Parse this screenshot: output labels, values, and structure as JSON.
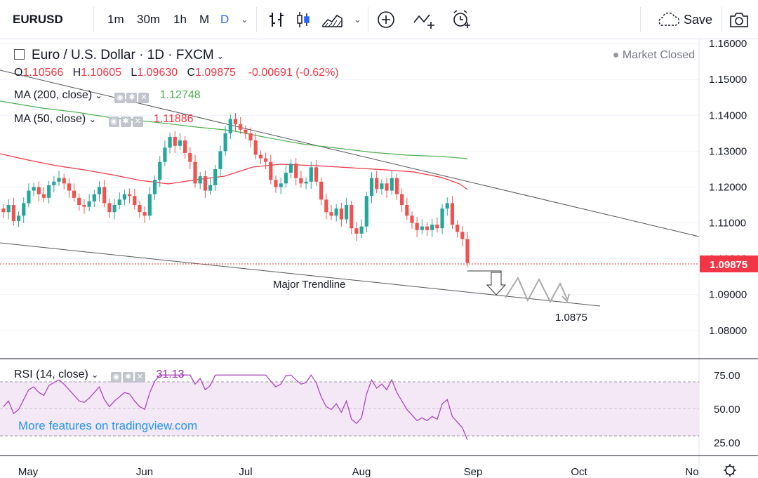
{
  "toolbar": {
    "symbol": "EURUSD",
    "timeframes": [
      "1m",
      "30m",
      "1h",
      "M",
      "D"
    ],
    "active_timeframe": "D",
    "save_label": "Save"
  },
  "legend": {
    "title": "Euro / U.S. Dollar · 1D · FXCM",
    "ohlc": {
      "o_label": "O",
      "o": "1.10566",
      "h_label": "H",
      "h": "1.10605",
      "l_label": "L",
      "l": "1.09630",
      "c_label": "C",
      "c": "1.09875",
      "change": "-0.00691 (-0.62%)"
    },
    "ma200": {
      "label": "MA (200, close)",
      "value": "1.12748",
      "color": "#4caf50"
    },
    "ma50": {
      "label": "MA (50, close)",
      "value": "1.11886",
      "color": "#f23645"
    },
    "rsi": {
      "label": "RSI (14, close)",
      "value": "31.13",
      "color": "#9c27b0"
    },
    "market_status": "Market Closed"
  },
  "watermark": "More features on tradingview.com",
  "chart_data": {
    "type": "candlestick",
    "symbol": "EURUSD",
    "x_ticks": [
      "May",
      "Jun",
      "Jul",
      "Aug",
      "Sep",
      "Oct",
      "No"
    ],
    "y_ticks": [
      "1.16000",
      "1.15000",
      "1.14000",
      "1.13000",
      "1.12000",
      "1.11000",
      "1.10000",
      "1.09000",
      "1.08000"
    ],
    "ylim": [
      1.0735,
      1.1612
    ],
    "last_price": "1.09875",
    "annotations": {
      "trendline_label": "Major Trendline",
      "target_label": "1.0875"
    },
    "closes": [
      1.113,
      1.115,
      1.1105,
      1.112,
      1.1155,
      1.119,
      1.12,
      1.118,
      1.117,
      1.1205,
      1.1215,
      1.1225,
      1.121,
      1.119,
      1.117,
      1.115,
      1.1145,
      1.116,
      1.118,
      1.12,
      1.1155,
      1.113,
      1.115,
      1.1165,
      1.118,
      1.1175,
      1.115,
      1.113,
      1.112,
      1.118,
      1.122,
      1.127,
      1.131,
      1.134,
      1.1315,
      1.133,
      1.1295,
      1.127,
      1.121,
      1.123,
      1.119,
      1.1205,
      1.125,
      1.13,
      1.135,
      1.139,
      1.1375,
      1.136,
      1.135,
      1.133,
      1.129,
      1.128,
      1.127,
      1.122,
      1.12,
      1.121,
      1.124,
      1.1265,
      1.1225,
      1.121,
      1.1215,
      1.1255,
      1.1215,
      1.1165,
      1.113,
      1.112,
      1.114,
      1.111,
      1.115,
      1.1085,
      1.107,
      1.109,
      1.1175,
      1.1225,
      1.1195,
      1.121,
      1.119,
      1.1225,
      1.118,
      1.115,
      1.112,
      1.11,
      1.108,
      1.109,
      1.108,
      1.1095,
      1.1085,
      1.114,
      1.1155,
      1.1095,
      1.1075,
      1.1055,
      1.0988
    ]
  }
}
